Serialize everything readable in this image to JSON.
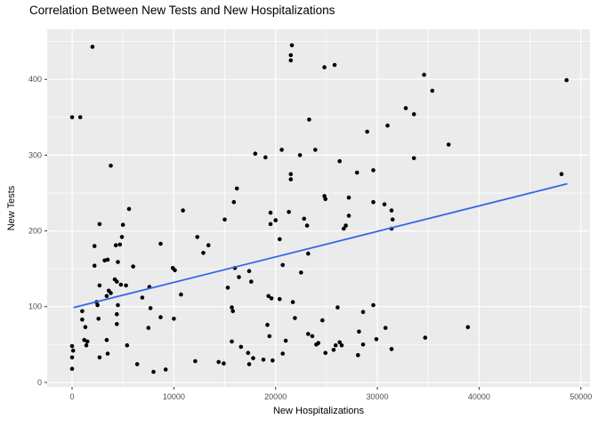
{
  "chart_data": {
    "type": "scatter",
    "title": "Correlation Between New Tests and New Hospitalizations",
    "xlabel": "New Hospitalizations",
    "ylabel": "New Tests",
    "x_ticks": [
      0,
      10000,
      20000,
      30000,
      40000,
      50000
    ],
    "y_ticks": [
      0,
      100,
      200,
      300,
      400
    ],
    "x_minor_ticks": [
      5000,
      15000,
      25000,
      35000,
      45000
    ],
    "y_minor_ticks": [
      50,
      150,
      250,
      350,
      450
    ],
    "xlim": [
      -2450,
      50900
    ],
    "ylim": [
      -6,
      466
    ],
    "grid": true,
    "legend": "none",
    "colors": {
      "background": "#FFFFFF",
      "panel": "#EBEBEB",
      "grid": "#FFFFFF",
      "point": "#000000",
      "trend": "#3865E5",
      "tick_mark": "#333333",
      "tick_label": "#4D4D4D",
      "text": "#000000"
    },
    "trend_line": {
      "type": "linear",
      "x1": 200,
      "y1": 99,
      "x2": 48600,
      "y2": 262
    },
    "points": [
      [
        2000,
        443
      ],
      [
        21600,
        445
      ],
      [
        21500,
        432
      ],
      [
        21500,
        425
      ],
      [
        24800,
        416
      ],
      [
        25800,
        419
      ],
      [
        34600,
        406
      ],
      [
        48600,
        399
      ],
      [
        35400,
        385
      ],
      [
        0,
        350
      ],
      [
        800,
        350
      ],
      [
        33600,
        354
      ],
      [
        32800,
        362
      ],
      [
        23300,
        347
      ],
      [
        31000,
        339
      ],
      [
        29000,
        331
      ],
      [
        37000,
        314
      ],
      [
        20600,
        307
      ],
      [
        23900,
        307
      ],
      [
        18000,
        302
      ],
      [
        19000,
        297
      ],
      [
        22400,
        300
      ],
      [
        26300,
        292
      ],
      [
        28000,
        277
      ],
      [
        29600,
        280
      ],
      [
        21500,
        275
      ],
      [
        21500,
        268
      ],
      [
        3800,
        286
      ],
      [
        33600,
        296
      ],
      [
        48100,
        275
      ],
      [
        16200,
        256
      ],
      [
        24800,
        246
      ],
      [
        24900,
        242
      ],
      [
        27200,
        244
      ],
      [
        15900,
        238
      ],
      [
        29600,
        238
      ],
      [
        30700,
        235
      ],
      [
        5600,
        229
      ],
      [
        10900,
        227
      ],
      [
        15000,
        215
      ],
      [
        19500,
        224
      ],
      [
        21300,
        225
      ],
      [
        19500,
        209
      ],
      [
        20000,
        214
      ],
      [
        22800,
        216
      ],
      [
        23100,
        207
      ],
      [
        27200,
        220
      ],
      [
        31400,
        227
      ],
      [
        31500,
        215
      ],
      [
        31400,
        203
      ],
      [
        26700,
        203
      ],
      [
        26900,
        207
      ],
      [
        2700,
        209
      ],
      [
        5000,
        208
      ],
      [
        4900,
        192
      ],
      [
        12300,
        192
      ],
      [
        20400,
        189
      ],
      [
        2200,
        180
      ],
      [
        4300,
        181
      ],
      [
        4700,
        182
      ],
      [
        8700,
        183
      ],
      [
        13400,
        181
      ],
      [
        12900,
        171
      ],
      [
        23200,
        170
      ],
      [
        3200,
        161
      ],
      [
        3500,
        162
      ],
      [
        2200,
        154
      ],
      [
        4500,
        159
      ],
      [
        6000,
        153
      ],
      [
        9900,
        151
      ],
      [
        10100,
        148
      ],
      [
        20700,
        155
      ],
      [
        22500,
        145
      ],
      [
        16000,
        151
      ],
      [
        17400,
        147
      ],
      [
        16400,
        139
      ],
      [
        17600,
        133
      ],
      [
        15300,
        125
      ],
      [
        4200,
        136
      ],
      [
        4400,
        133
      ],
      [
        2700,
        128
      ],
      [
        4800,
        129
      ],
      [
        5300,
        128
      ],
      [
        3600,
        121
      ],
      [
        3800,
        118
      ],
      [
        7600,
        126
      ],
      [
        3400,
        114
      ],
      [
        6900,
        112
      ],
      [
        10700,
        116
      ],
      [
        19300,
        114
      ],
      [
        19600,
        111
      ],
      [
        20400,
        110
      ],
      [
        21700,
        106
      ],
      [
        2400,
        106
      ],
      [
        2500,
        102
      ],
      [
        4500,
        102
      ],
      [
        1000,
        94
      ],
      [
        7700,
        98
      ],
      [
        15700,
        99
      ],
      [
        15800,
        94
      ],
      [
        26100,
        99
      ],
      [
        29600,
        102
      ],
      [
        28600,
        93
      ],
      [
        8700,
        86
      ],
      [
        1000,
        83
      ],
      [
        2600,
        84
      ],
      [
        4400,
        90
      ],
      [
        10000,
        84
      ],
      [
        21900,
        85
      ],
      [
        24600,
        82
      ],
      [
        38900,
        73
      ],
      [
        1300,
        73
      ],
      [
        4400,
        77
      ],
      [
        7500,
        72
      ],
      [
        19200,
        76
      ],
      [
        30800,
        72
      ],
      [
        28200,
        67
      ],
      [
        19400,
        61
      ],
      [
        23200,
        64
      ],
      [
        23600,
        61
      ],
      [
        28600,
        50
      ],
      [
        29900,
        57
      ],
      [
        21000,
        55
      ],
      [
        24000,
        50
      ],
      [
        24200,
        52
      ],
      [
        25900,
        49
      ],
      [
        26300,
        53
      ],
      [
        26500,
        49
      ],
      [
        34700,
        59
      ],
      [
        0,
        48
      ],
      [
        1200,
        56
      ],
      [
        1500,
        54
      ],
      [
        1400,
        49
      ],
      [
        3400,
        56
      ],
      [
        100,
        42
      ],
      [
        5400,
        49
      ],
      [
        0,
        33
      ],
      [
        2700,
        33
      ],
      [
        3500,
        38
      ],
      [
        12100,
        28
      ],
      [
        14400,
        27
      ],
      [
        14900,
        25
      ],
      [
        15700,
        54
      ],
      [
        16600,
        47
      ],
      [
        17300,
        39
      ],
      [
        17800,
        32
      ],
      [
        18800,
        30
      ],
      [
        19700,
        29
      ],
      [
        17400,
        24
      ],
      [
        20700,
        38
      ],
      [
        24900,
        39
      ],
      [
        25700,
        43
      ],
      [
        28100,
        36
      ],
      [
        31400,
        44
      ],
      [
        6400,
        24
      ],
      [
        8000,
        14
      ],
      [
        9200,
        17
      ],
      [
        0,
        18
      ]
    ]
  }
}
